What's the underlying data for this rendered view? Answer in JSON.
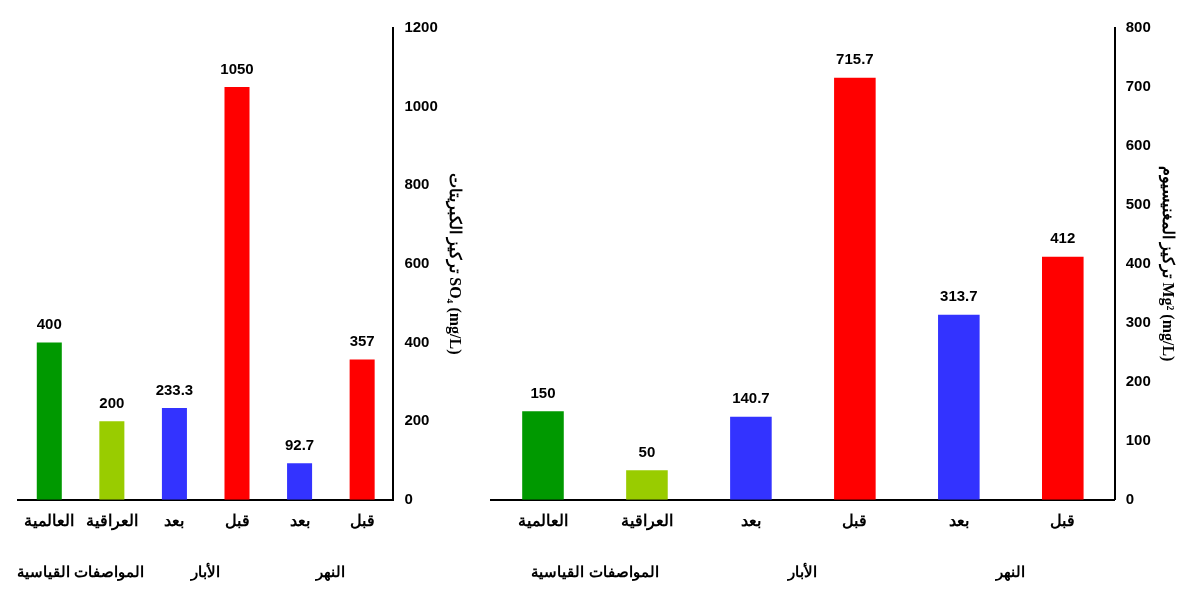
{
  "chart_data": [
    {
      "type": "bar",
      "categories": [
        "العالمية",
        "العراقية",
        "بعد",
        "قبل",
        "بعد",
        "قبل"
      ],
      "values": [
        400,
        200,
        233.3,
        1050,
        92.7,
        357
      ],
      "colors": [
        "#009900",
        "#99cc00",
        "#3333ff",
        "#ff0000",
        "#3333ff",
        "#ff0000"
      ],
      "ylim": [
        0,
        1200
      ],
      "yticks": [
        0,
        200,
        400,
        600,
        800,
        1000,
        1200
      ],
      "ylabel": "تركيز الكبريتات SO₄ (mg/L)",
      "data_labels": true,
      "grid": false,
      "legend": false,
      "annotations": [
        "المواصفات القياسية",
        "الأبار",
        "النهر"
      ]
    },
    {
      "type": "bar",
      "categories": [
        "العالمية",
        "العراقية",
        "بعد",
        "قبل",
        "بعد",
        "قبل"
      ],
      "values": [
        150,
        50,
        140.7,
        715.7,
        313.7,
        412
      ],
      "colors": [
        "#009900",
        "#99cc00",
        "#3333ff",
        "#ff0000",
        "#3333ff",
        "#ff0000"
      ],
      "ylim": [
        0,
        800
      ],
      "yticks": [
        0,
        100,
        200,
        300,
        400,
        500,
        600,
        700,
        800
      ],
      "ylabel": "تركيز المغنيسيوم Mg² (mg/L)",
      "data_labels": true,
      "grid": false,
      "legend": false,
      "annotations": [
        "المواصفات القياسية",
        "الأبار",
        "النهر"
      ]
    }
  ]
}
